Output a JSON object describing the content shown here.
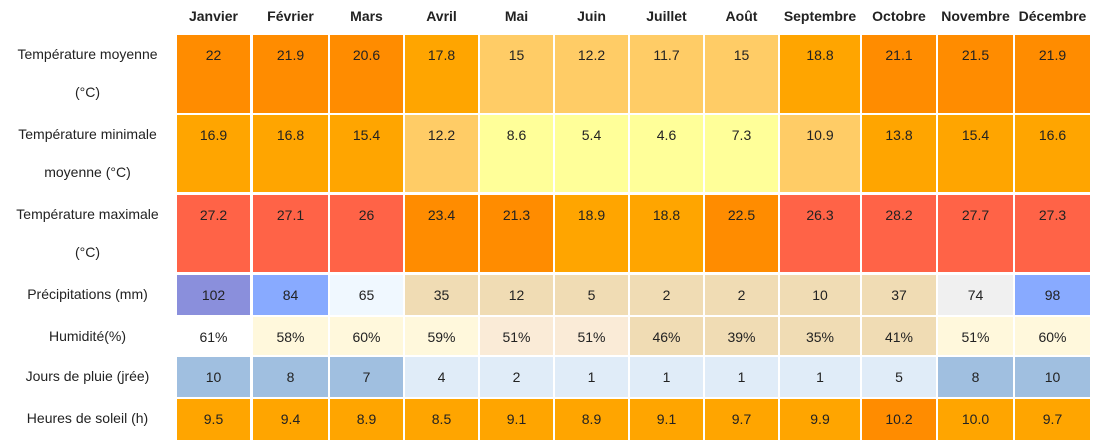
{
  "table": {
    "months": [
      "Janvier",
      "Février",
      "Mars",
      "Avril",
      "Mai",
      "Juin",
      "Juillet",
      "Août",
      "Septembre",
      "Octobre",
      "Novembre",
      "Décembre"
    ],
    "rows": [
      {
        "label": "Température moyenne (°C)",
        "values": [
          "22",
          "21.9",
          "20.6",
          "17.8",
          "15",
          "12.2",
          "11.7",
          "15",
          "18.8",
          "21.1",
          "21.5",
          "21.9"
        ]
      },
      {
        "label": "Température minimale moyenne (°C)",
        "values": [
          "16.9",
          "16.8",
          "15.4",
          "12.2",
          "8.6",
          "5.4",
          "4.6",
          "7.3",
          "10.9",
          "13.8",
          "15.4",
          "16.6"
        ]
      },
      {
        "label": "Température maximale (°C)",
        "values": [
          "27.2",
          "27.1",
          "26",
          "23.4",
          "21.3",
          "18.9",
          "18.8",
          "22.5",
          "26.3",
          "28.2",
          "27.7",
          "27.3"
        ]
      },
      {
        "label": "Précipitations (mm)",
        "values": [
          "102",
          "84",
          "65",
          "35",
          "12",
          "5",
          "2",
          "2",
          "10",
          "37",
          "74",
          "98"
        ]
      },
      {
        "label": "Humidité(%)",
        "values": [
          "61%",
          "58%",
          "60%",
          "59%",
          "51%",
          "51%",
          "46%",
          "39%",
          "35%",
          "41%",
          "51%",
          "60%"
        ]
      },
      {
        "label": "Jours de pluie (jrée)",
        "values": [
          "10",
          "8",
          "7",
          "4",
          "2",
          "1",
          "1",
          "1",
          "1",
          "5",
          "8",
          "10"
        ]
      },
      {
        "label": "Heures de soleil (h)",
        "values": [
          "9.5",
          "9.4",
          "8.9",
          "8.5",
          "9.1",
          "8.9",
          "9.1",
          "9.7",
          "9.9",
          "10.2",
          "10.0",
          "9.7"
        ]
      }
    ]
  }
}
